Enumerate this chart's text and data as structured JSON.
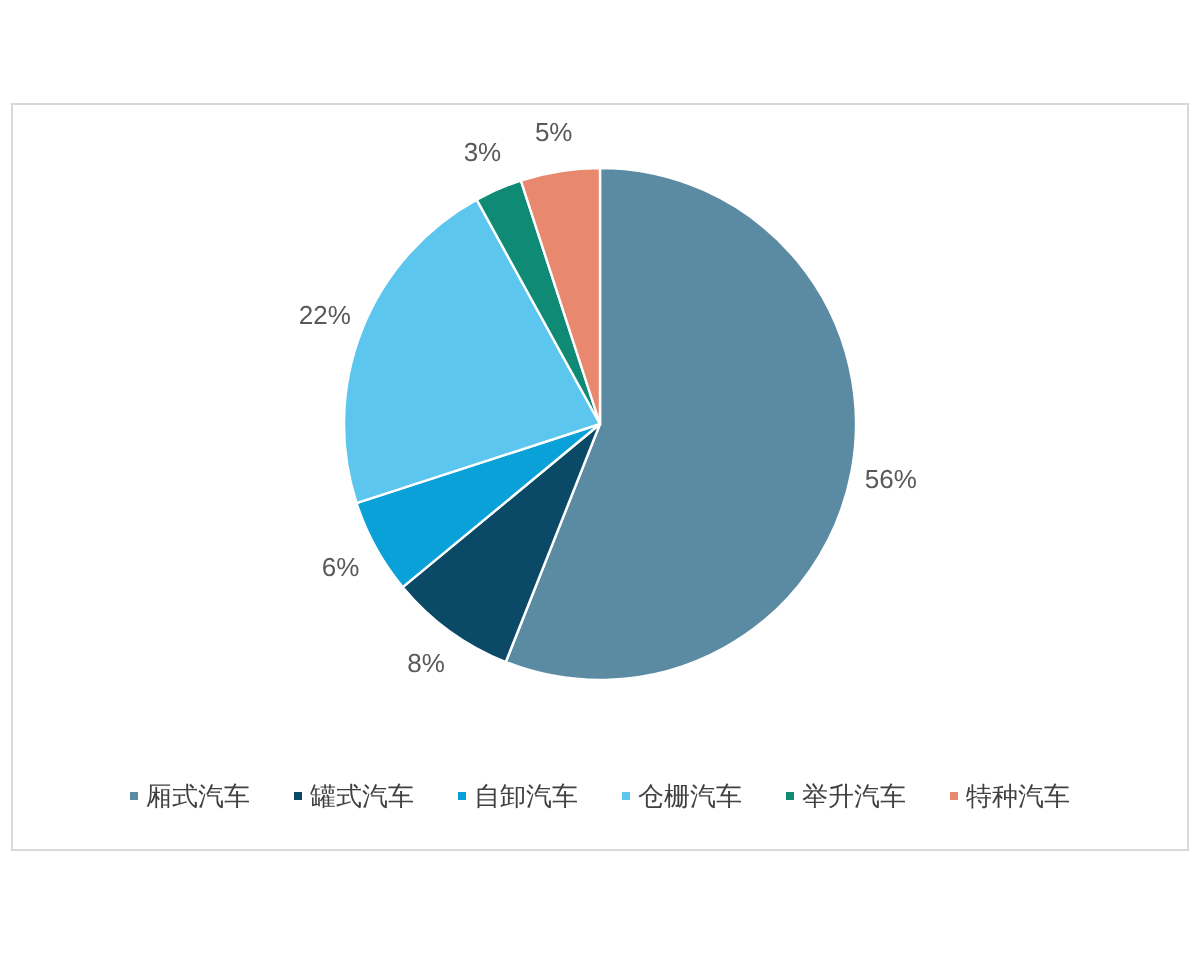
{
  "chart_data": {
    "type": "pie",
    "categories": [
      "厢式汽车",
      "罐式汽车",
      "自卸汽车",
      "仓栅汽车",
      "举升汽车",
      "特种汽车"
    ],
    "values": [
      56,
      8,
      6,
      22,
      3,
      5
    ],
    "colors": [
      "#5b8ba3",
      "#0b4a66",
      "#0aa0d8",
      "#5cc6ee",
      "#0f8a75",
      "#e8896f"
    ],
    "value_labels": [
      "56%",
      "8%",
      "6%",
      "22%",
      "3%",
      "5%"
    ],
    "legend": "bottom"
  }
}
